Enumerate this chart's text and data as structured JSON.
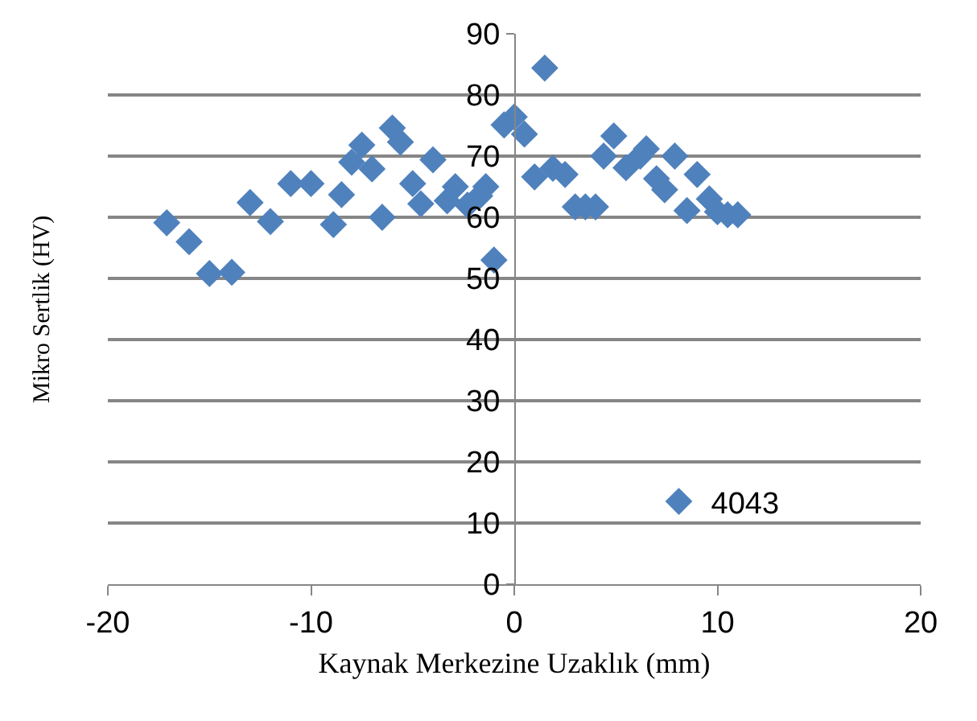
{
  "chart_data": {
    "type": "scatter",
    "xlabel": "Kaynak Merkezine Uzaklık (mm)",
    "ylabel": "Mikro Sertlik (HV)",
    "xlim": [
      -20,
      20
    ],
    "xticks": [
      -20,
      -10,
      0,
      10,
      20
    ],
    "ylim": [
      0,
      90
    ],
    "yticks": [
      0,
      10,
      20,
      30,
      40,
      50,
      60,
      70,
      80,
      90
    ],
    "grid": "y",
    "legend": "bottom right",
    "marker": "diamond",
    "series": [
      {
        "name": "4043",
        "color": "#4f81bd",
        "x": [
          -17.1,
          -16,
          -15,
          -13.9,
          -13,
          -12,
          -11,
          -10,
          -8.9,
          -8.5,
          -8,
          -7.5,
          -7,
          -6.5,
          -6,
          -5.6,
          -5,
          -4.6,
          -4,
          -3.3,
          -2.9,
          -2.3,
          -1.7,
          -1.4,
          -1,
          -0.5,
          0,
          0.5,
          1.5,
          1,
          1.9,
          2.5,
          3,
          3.5,
          4,
          4.4,
          4.9,
          5.5,
          6.2,
          6.5,
          7,
          7.4,
          7.9,
          8.5,
          9,
          9.6,
          10,
          10.5,
          11
        ],
        "values": [
          59.1,
          56,
          50.8,
          51,
          62.4,
          59.3,
          65.5,
          65.5,
          58.8,
          63.7,
          69,
          71.8,
          67.9,
          60,
          74.6,
          72.3,
          65.5,
          62.2,
          69.4,
          62.7,
          65,
          62,
          63.5,
          65,
          53,
          75.1,
          76.4,
          73.6,
          84.4,
          66.6,
          68,
          67,
          61.7,
          61.7,
          61.7,
          70,
          73.3,
          68.1,
          70,
          71.2,
          66.3,
          64.5,
          70,
          61.1,
          67,
          63,
          60.9,
          60.4,
          60.4
        ]
      }
    ]
  }
}
